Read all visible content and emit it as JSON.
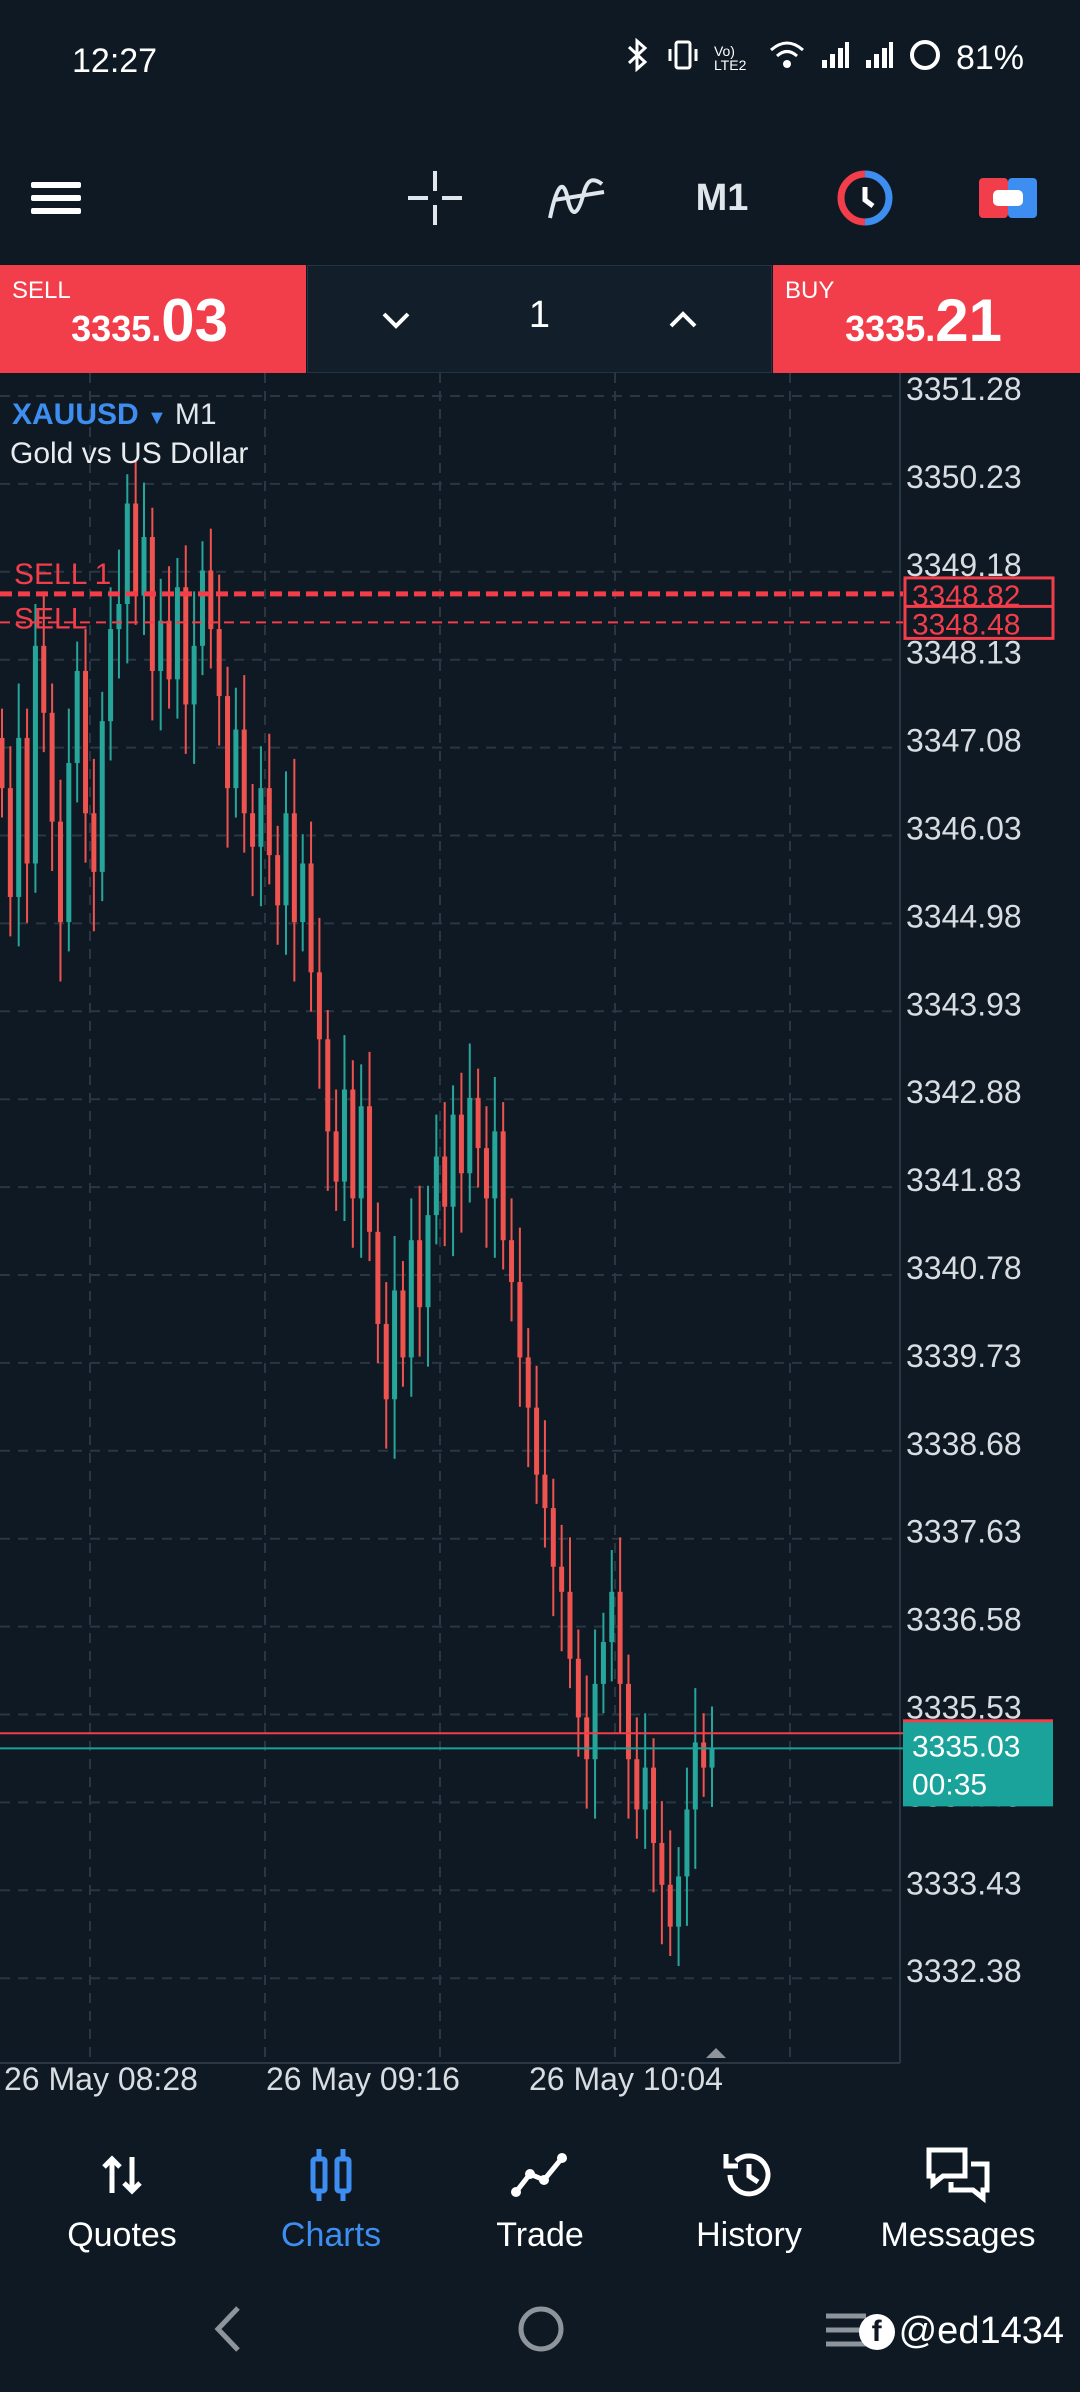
{
  "status_bar": {
    "time": "12:27",
    "network": "Vo) LTE2",
    "battery": "81%"
  },
  "toolbar": {
    "timeframe": "M1"
  },
  "trade": {
    "sell_label": "SELL",
    "sell_price_prefix": "3335.",
    "sell_price_main": "03",
    "buy_label": "BUY",
    "buy_price_prefix": "3335.",
    "buy_price_main": "21",
    "volume": "1"
  },
  "chart": {
    "symbol": "XAUUSD",
    "timeframe": "M1",
    "description": "Gold vs US Dollar",
    "y_ticks": [
      "3351.28",
      "3350.23",
      "3349.18",
      "3348.13",
      "3347.08",
      "3346.03",
      "3344.98",
      "3343.93",
      "3342.88",
      "3341.83",
      "3340.78",
      "3339.73",
      "3338.68",
      "3337.63",
      "3336.58",
      "3335.53",
      "3334.48",
      "3333.43",
      "3332.38"
    ],
    "x_ticks": [
      "26 May 08:28",
      "26 May 09:16",
      "26 May 10:04"
    ],
    "orders": [
      {
        "label": "SELL 1",
        "price": "3348.82"
      },
      {
        "label": "SELL",
        "price": "3348.48"
      }
    ],
    "ask_tag": "3335.21",
    "bid_tag": "3335.03",
    "countdown": "00:35",
    "colors": {
      "bull": "#26a69a",
      "bear": "#ef5350",
      "order_line": "#f23d4a",
      "bid": "#1aa39a"
    }
  },
  "chart_data": {
    "type": "candlestick",
    "symbol": "XAUUSD",
    "timeframe": "M1",
    "ylim": [
      3331.9,
      3351.6
    ],
    "x_labels": [
      "26 May 08:28",
      "26 May 09:16",
      "26 May 10:04"
    ],
    "close": [
      3346.5,
      3345.2,
      3347.1,
      3345.6,
      3348.2,
      3347.4,
      3346.1,
      3344.9,
      3346.8,
      3347.9,
      3346.2,
      3345.5,
      3347.3,
      3348.4,
      3348.7,
      3349.9,
      3348.8,
      3349.5,
      3347.9,
      3348.5,
      3347.8,
      3348.9,
      3347.5,
      3348.2,
      3349.1,
      3348.4,
      3347.6,
      3346.5,
      3347.2,
      3346.2,
      3345.8,
      3346.5,
      3345.7,
      3345.1,
      3346.2,
      3344.9,
      3345.6,
      3344.3,
      3343.5,
      3342.4,
      3341.8,
      3342.9,
      3341.6,
      3342.7,
      3341.2,
      3340.1,
      3339.2,
      3340.5,
      3339.7,
      3341.1,
      3340.3,
      3341.4,
      3342.1,
      3341.5,
      3342.6,
      3341.9,
      3342.8,
      3342.2,
      3341.6,
      3342.4,
      3341.1,
      3340.6,
      3339.7,
      3339.1,
      3338.3,
      3337.9,
      3337.2,
      3336.9,
      3336.1,
      3335.4,
      3334.9,
      3335.8,
      3336.3,
      3336.9,
      3335.8,
      3334.9,
      3334.3,
      3334.8,
      3333.9,
      3333.4,
      3332.9,
      3333.5,
      3334.3,
      3335.1,
      3334.8,
      3335.03
    ],
    "last_bid": 3335.03,
    "last_ask": 3335.21
  },
  "nav": {
    "items": [
      {
        "label": "Quotes"
      },
      {
        "label": "Charts"
      },
      {
        "label": "Trade"
      },
      {
        "label": "History"
      },
      {
        "label": "Messages"
      }
    ]
  },
  "watermark": "@ed1434"
}
